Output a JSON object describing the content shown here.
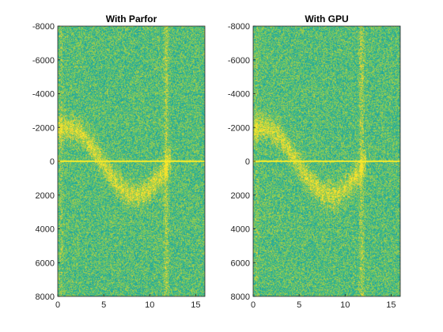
{
  "chart_data": [
    {
      "type": "heatmap",
      "title": "With Parfor",
      "xlabel": "",
      "ylabel": "",
      "xlim": [
        0,
        16
      ],
      "ylim": [
        -8000,
        8000
      ],
      "y_direction": "reversed",
      "xticks": [
        0,
        5,
        10,
        15
      ],
      "yticks": [
        -8000,
        -6000,
        -4000,
        -2000,
        0,
        2000,
        4000,
        6000,
        8000
      ],
      "colormap": "parula",
      "features": {
        "horizontal_line_y": 0,
        "vertical_band_x": 11.8,
        "curve": "sinusoidal bright ridge, peak about -2000 near x=1, trough about 2000 near x=8.5, returning to 0 near x=12"
      }
    },
    {
      "type": "heatmap",
      "title": "With GPU",
      "xlabel": "",
      "ylabel": "",
      "xlim": [
        0,
        16
      ],
      "ylim": [
        -8000,
        8000
      ],
      "y_direction": "reversed",
      "xticks": [
        0,
        5,
        10,
        15
      ],
      "yticks": [
        -8000,
        -6000,
        -4000,
        -2000,
        0,
        2000,
        4000,
        6000,
        8000
      ],
      "colormap": "parula",
      "features": {
        "horizontal_line_y": 0,
        "vertical_band_x": 11.8,
        "curve": "sinusoidal bright ridge, peak about -2000 near x=1, trough about 2000 near x=8.5, returning to 0 near x=12"
      }
    }
  ],
  "colors": {
    "background_green": "#7ccb62",
    "teal": "#1fa8b0",
    "yellow": "#f7e33d",
    "orange": "#f4b43a",
    "line_yellow": "#fbf22a"
  }
}
